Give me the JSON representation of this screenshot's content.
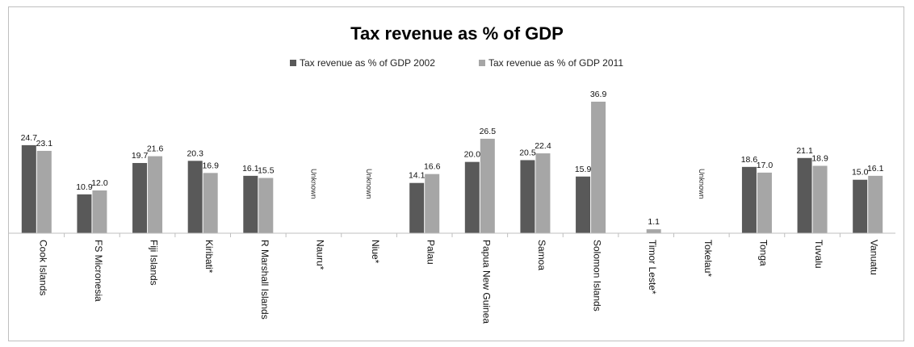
{
  "chart_data": {
    "type": "bar",
    "title": "Tax revenue as % of GDP",
    "xlabel": "",
    "ylabel": "",
    "ylim": [
      0,
      37.5
    ],
    "grid": false,
    "legend_position": "top",
    "categories": [
      "Cook Islands",
      "FS Micronesia",
      "Fiji Islands",
      "Kiribati*",
      "R Marshall Islands",
      "Nauru*",
      "Niue*",
      "Palau",
      "Papua New Guinea",
      "Samoa",
      "Solomon Islands",
      "Timor Leste*",
      "Tokelau*",
      "Tonga",
      "Tuvalu",
      "Vanuatu"
    ],
    "series": [
      {
        "name": "Tax revenue as % of GDP 2002",
        "color": "#595959",
        "values": [
          24.7,
          10.9,
          19.7,
          20.3,
          16.1,
          null,
          null,
          14.1,
          20.0,
          20.5,
          15.9,
          null,
          null,
          18.6,
          21.1,
          15.0
        ],
        "labels": [
          "24.7",
          "10.9",
          "19.7",
          "20.3",
          "16.1",
          "",
          "",
          "14.1",
          "20.0",
          "20.5",
          "15.9",
          "",
          "",
          "18.6",
          "21.1",
          "15.0"
        ]
      },
      {
        "name": "Tax revenue as % of GDP 2011",
        "color": "#a6a6a6",
        "values": [
          23.1,
          12.0,
          21.6,
          16.9,
          15.5,
          null,
          null,
          16.6,
          26.5,
          22.4,
          36.9,
          1.1,
          null,
          17.0,
          18.9,
          16.1
        ],
        "labels": [
          "23.1",
          "12.0",
          "21.6",
          "16.9",
          "15.5",
          "",
          "",
          "16.6",
          "26.5",
          "22.4",
          "36.9",
          "1.1",
          "",
          "17.0",
          "18.9",
          "16.1"
        ]
      }
    ],
    "annotations": [
      {
        "category": "Nauru*",
        "text": "Unknown"
      },
      {
        "category": "Niue*",
        "text": "Unknown"
      },
      {
        "category": "Tokelau*",
        "text": "Unknown"
      }
    ]
  }
}
